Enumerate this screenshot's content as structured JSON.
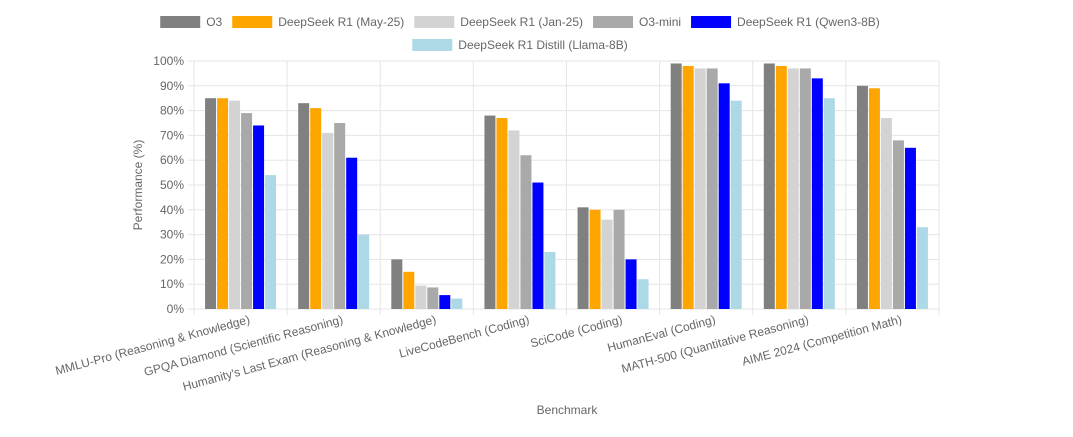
{
  "chart_data": {
    "type": "bar",
    "title": "",
    "xlabel": "Benchmark",
    "ylabel": "Performance (%)",
    "ylim": [
      0,
      100
    ],
    "y_tick_step": 10,
    "y_tick_suffix": "%",
    "grid": true,
    "legend_position": "top-center",
    "categories": [
      "MMLU-Pro (Reasoning & Knowledge)",
      "GPQA Diamond (Scientific Reasoning)",
      "Humanity's Last Exam (Reasoning & Knowledge)",
      "LiveCodeBench (Coding)",
      "SciCode (Coding)",
      "HumanEval (Coding)",
      "MATH-500 (Quantitative Reasoning)",
      "AIME 2024 (Competition Math)"
    ],
    "series": [
      {
        "name": "O3",
        "color": "#808080",
        "values": [
          85,
          83,
          20,
          78,
          41,
          99,
          99,
          90
        ]
      },
      {
        "name": "DeepSeek R1 (May-25)",
        "color": "#FFA500",
        "values": [
          85,
          81,
          15,
          77,
          40,
          98,
          98,
          89
        ]
      },
      {
        "name": "DeepSeek R1 (Jan-25)",
        "color": "#D3D3D3",
        "values": [
          84,
          71,
          9.4,
          72,
          36,
          97,
          97,
          77
        ]
      },
      {
        "name": "O3-mini",
        "color": "#A9A9A9",
        "values": [
          79,
          75,
          8.7,
          62,
          40,
          97,
          97,
          68
        ]
      },
      {
        "name": "DeepSeek R1 (Qwen3-8B)",
        "color": "#0000FF",
        "values": [
          74,
          61,
          5.6,
          51,
          20,
          91,
          93,
          65
        ]
      },
      {
        "name": "DeepSeek R1 Distill (Llama-8B)",
        "color": "#ADD8E6",
        "values": [
          54,
          30,
          4.2,
          23,
          12,
          84,
          85,
          33
        ]
      }
    ]
  }
}
